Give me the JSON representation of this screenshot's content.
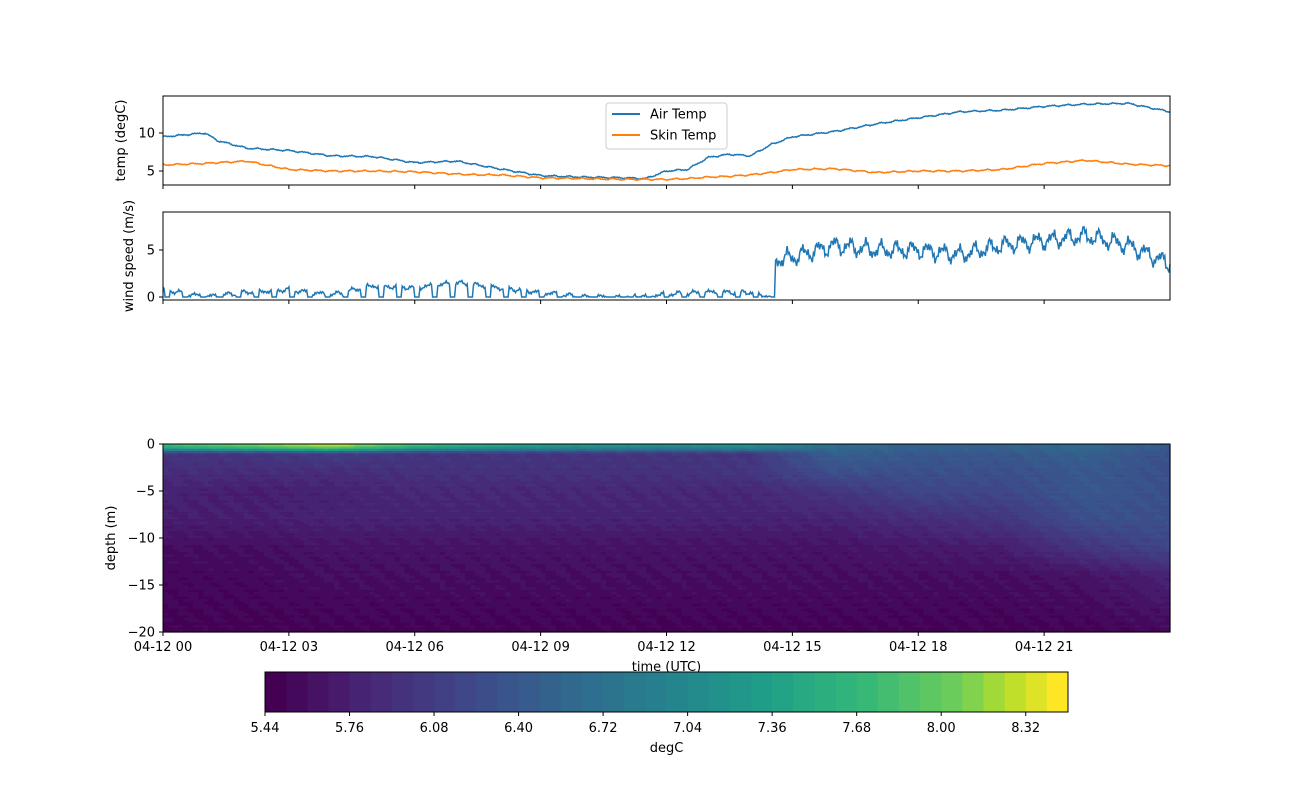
{
  "chart_data": [
    {
      "type": "line",
      "ylabel": "temp (degC)",
      "ylim": [
        3.16,
        14.87
      ],
      "yticks": [
        "5",
        "10"
      ],
      "legend_position": "top-center",
      "x_hours": [
        0,
        1,
        1.3,
        2,
        3,
        4,
        5,
        6,
        7,
        7.5,
        8,
        9,
        10,
        11,
        11.5,
        12,
        12.5,
        13,
        13.5,
        14,
        14.5,
        15,
        16,
        17,
        18,
        19,
        20,
        21,
        22,
        23,
        24
      ],
      "series": [
        {
          "name": "Air Temp",
          "color": "#1f77b4",
          "values": [
            9.5,
            10,
            9,
            8,
            7.7,
            7.0,
            6.9,
            6.1,
            6.3,
            5.8,
            5.3,
            4.4,
            4.2,
            4.1,
            4.0,
            5.0,
            5.2,
            6.8,
            7.2,
            7.0,
            8.5,
            9.5,
            10.2,
            11.2,
            12.0,
            12.8,
            13.0,
            13.5,
            13.8,
            13.9,
            12.8
          ]
        },
        {
          "name": "Skin Temp",
          "color": "#ff7f0e",
          "values": [
            5.8,
            6.0,
            6.1,
            6.3,
            5.2,
            5.0,
            5.0,
            4.9,
            4.6,
            4.5,
            4.5,
            4.1,
            4.0,
            3.9,
            3.9,
            3.9,
            4.0,
            4.2,
            4.3,
            4.5,
            4.8,
            5.2,
            5.3,
            4.8,
            5.0,
            5.0,
            5.2,
            6.0,
            6.4,
            5.9,
            5.7
          ]
        }
      ]
    },
    {
      "type": "line",
      "ylabel": "wind speed (m/s)",
      "ylim": [
        -0.32,
        9.04
      ],
      "yticks": [
        "0",
        "5"
      ],
      "x_hours": [
        0,
        1,
        2,
        3,
        4,
        5,
        6,
        7,
        8,
        9,
        10,
        11,
        12,
        13,
        14,
        14.5,
        14.6,
        15,
        16,
        17,
        18,
        19,
        20,
        21,
        22,
        23,
        24
      ],
      "series": [
        {
          "name": "wind speed",
          "color": "#1f77b4",
          "values": [
            0.8,
            0,
            0.5,
            0.8,
            0.2,
            1.2,
            1.0,
            1.5,
            1.0,
            0.5,
            0,
            0,
            0.3,
            0.5,
            0.5,
            0,
            4.0,
            4.2,
            5.5,
            5.0,
            5.0,
            4.5,
            5.5,
            6.0,
            6.5,
            5.5,
            3.5
          ]
        }
      ]
    },
    {
      "type": "heatmap",
      "xlabel": "time (UTC)",
      "ylabel": "depth (m)",
      "ylim": [
        -20,
        0
      ],
      "xticks": [
        "04-12 00",
        "04-12 03",
        "04-12 06",
        "04-12 09",
        "04-12 12",
        "04-12 15",
        "04-12 18",
        "04-12 21"
      ],
      "yticks": [
        "0",
        "−5",
        "−10",
        "−15",
        "−20"
      ],
      "time_hours": [
        0,
        2,
        4,
        6,
        8,
        10,
        12,
        14,
        16,
        18,
        20,
        22,
        24
      ],
      "depths": [
        0,
        -0.5,
        -1,
        -3,
        -5,
        -8,
        -11,
        -14,
        -20
      ],
      "values": [
        [
          7.9,
          8.2,
          8.5,
          8.0,
          7.6,
          7.4,
          7.3,
          7.3,
          6.7,
          6.5,
          6.5,
          6.6,
          6.4
        ],
        [
          7.3,
          7.5,
          7.8,
          7.2,
          7.0,
          6.9,
          6.8,
          6.9,
          6.6,
          6.5,
          6.5,
          6.6,
          6.4
        ],
        [
          6.0,
          6.0,
          6.1,
          6.0,
          6.0,
          6.0,
          6.0,
          6.0,
          6.5,
          6.4,
          6.4,
          6.5,
          6.3
        ],
        [
          5.9,
          5.9,
          5.9,
          5.95,
          5.95,
          5.95,
          5.95,
          6.0,
          6.3,
          6.3,
          6.3,
          6.4,
          6.3
        ],
        [
          5.8,
          5.75,
          5.8,
          5.85,
          5.85,
          5.85,
          5.85,
          5.85,
          6.0,
          6.2,
          6.2,
          6.4,
          6.3
        ],
        [
          5.75,
          5.75,
          5.8,
          5.8,
          5.8,
          5.8,
          5.8,
          5.8,
          5.8,
          5.9,
          6.0,
          6.3,
          6.3
        ],
        [
          5.6,
          5.6,
          5.65,
          5.65,
          5.65,
          5.65,
          5.65,
          5.65,
          5.65,
          5.7,
          5.75,
          6.0,
          6.2
        ],
        [
          5.55,
          5.55,
          5.6,
          5.6,
          5.6,
          5.6,
          5.6,
          5.6,
          5.6,
          5.6,
          5.6,
          5.65,
          5.8
        ],
        [
          5.5,
          5.5,
          5.5,
          5.5,
          5.5,
          5.5,
          5.5,
          5.5,
          5.5,
          5.5,
          5.5,
          5.5,
          5.55
        ]
      ],
      "colorbar": {
        "label": "degC",
        "colormap": "viridis",
        "range": [
          5.44,
          8.48
        ],
        "levels": 38,
        "ticks": [
          "5.44",
          "5.76",
          "6.08",
          "6.40",
          "6.72",
          "7.04",
          "7.36",
          "7.68",
          "8.00",
          "8.32"
        ]
      }
    }
  ]
}
